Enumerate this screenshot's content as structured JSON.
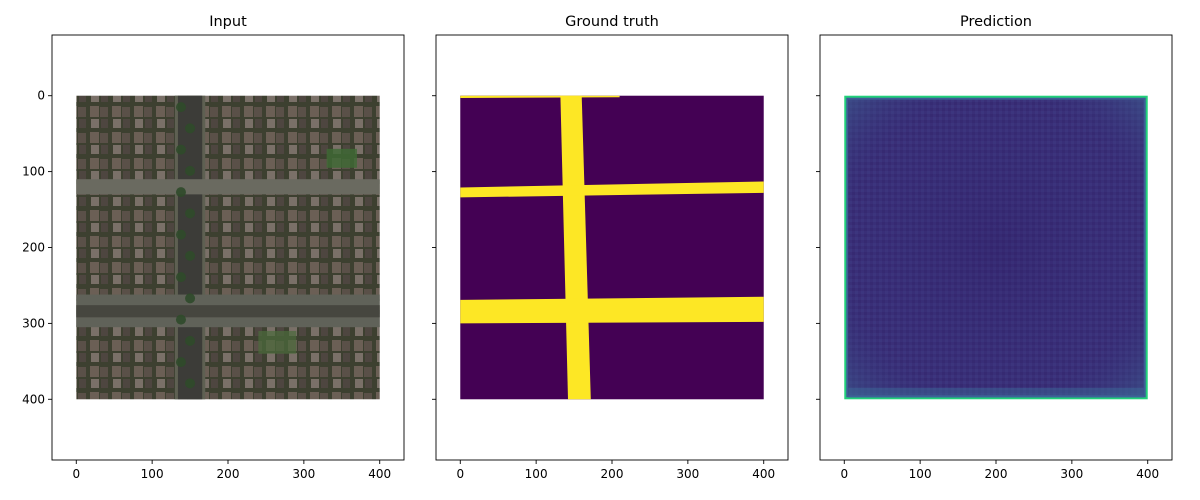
{
  "chart_data": [
    {
      "type": "heatmap",
      "title": "Input",
      "content": "satellite image",
      "xlim": [
        -32,
        432
      ],
      "ylim": [
        480,
        -80
      ],
      "xticks": [
        0,
        100,
        200,
        300,
        400
      ],
      "yticks": [
        0,
        100,
        200,
        300,
        400
      ],
      "show_ytick_labels": true,
      "image_extent": [
        0,
        400,
        0,
        400
      ]
    },
    {
      "type": "heatmap",
      "title": "Ground truth",
      "content": "binary road mask",
      "colormap": "viridis",
      "xlim": [
        -32,
        432
      ],
      "ylim": [
        480,
        -80
      ],
      "xticks": [
        0,
        100,
        200,
        300,
        400
      ],
      "yticks": [
        0,
        100,
        200,
        300,
        400
      ],
      "show_ytick_labels": false,
      "image_extent": [
        0,
        400,
        0,
        400
      ],
      "roads": [
        {
          "orientation": "vertical",
          "points": [
            [
              132,
              0
            ],
            [
              160,
              0
            ],
            [
              172,
              400
            ],
            [
              142,
              400
            ]
          ]
        },
        {
          "orientation": "horizontal",
          "points": [
            [
              0,
              121
            ],
            [
              400,
              113
            ],
            [
              400,
              128
            ],
            [
              0,
              134
            ]
          ]
        },
        {
          "orientation": "horizontal",
          "points": [
            [
              0,
              269
            ],
            [
              400,
              265
            ],
            [
              400,
              298
            ],
            [
              0,
              300
            ]
          ]
        },
        {
          "orientation": "horizontal",
          "points": [
            [
              0,
              0
            ],
            [
              210,
              0
            ],
            [
              210,
              2
            ],
            [
              0,
              3
            ]
          ]
        }
      ],
      "background_color": "#440154",
      "road_color": "#fde725"
    },
    {
      "type": "heatmap",
      "title": "Prediction",
      "content": "predicted road probability map",
      "colormap": "viridis",
      "xlim": [
        -32,
        432
      ],
      "ylim": [
        480,
        -80
      ],
      "xticks": [
        0,
        100,
        200,
        300,
        400
      ],
      "yticks": [
        0,
        100,
        200,
        300,
        400
      ],
      "show_ytick_labels": false,
      "image_extent": [
        0,
        400,
        0,
        400
      ],
      "interior_color": "#3a2f78",
      "border_color": "#21d07a"
    }
  ]
}
